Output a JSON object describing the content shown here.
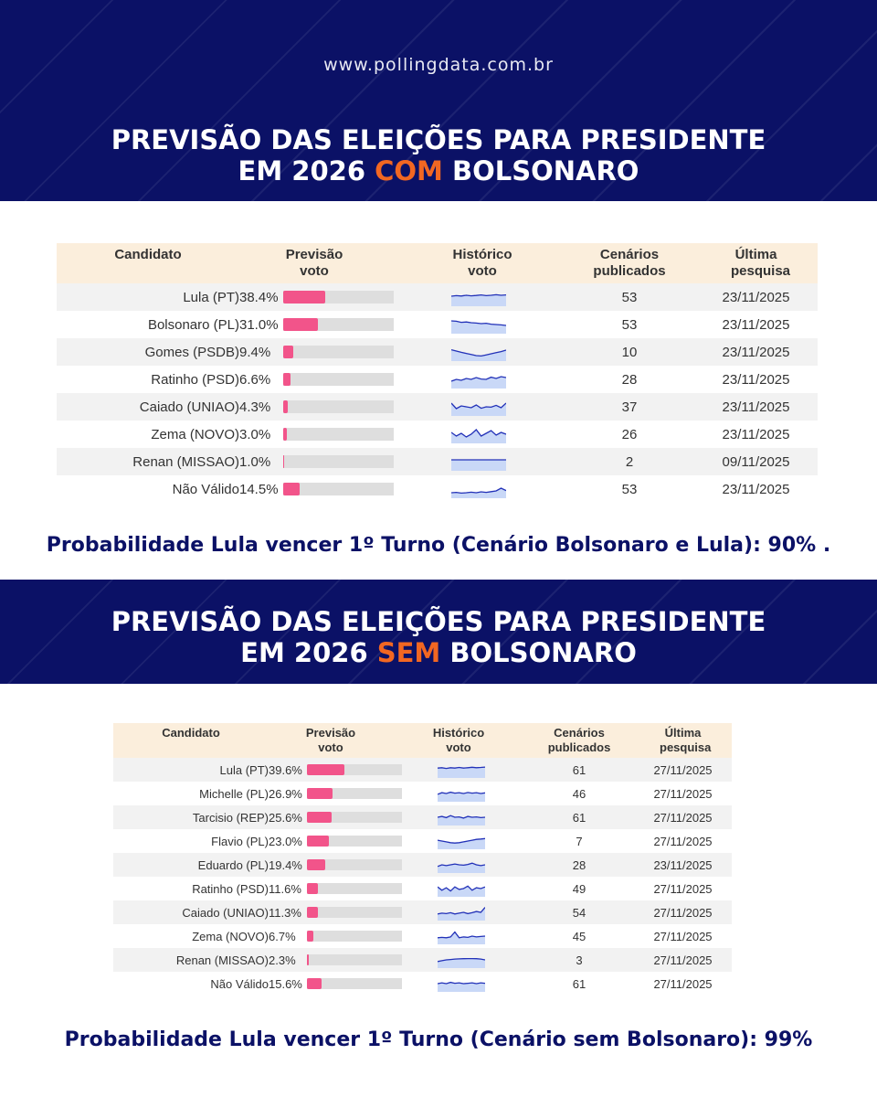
{
  "site_url": "www.pollingdata.com.br",
  "section1": {
    "title_line1": "PREVISÃO DAS ELEIÇÕES PARA PRESIDENTE",
    "title_pre": "EM 2026 ",
    "title_accent": "COM",
    "title_post": " BOLSONARO",
    "probability": "Probabilidade Lula vencer 1º Turno (Cenário Bolsonaro e Lula): 90% ."
  },
  "section2": {
    "title_line1": "PREVISÃO DAS ELEIÇÕES PARA PRESIDENTE",
    "title_pre": "EM 2026 ",
    "title_accent": "SEM",
    "title_post": " BOLSONARO",
    "probability": "Probabilidade Lula vencer 1º Turno (Cenário sem Bolsonaro): 99%"
  },
  "colors": {
    "banner": "#0b1166",
    "accent": "#f26722",
    "bar": "#f2548a",
    "header_bg": "#fbeedc",
    "spark_line": "#2231b8",
    "spark_fill": "#c9d8f7"
  },
  "chart_data": [
    {
      "type": "table",
      "columns": [
        "Candidato",
        "Previsão voto",
        "Histórico voto",
        "Cenários publicados",
        "Última pesquisa"
      ],
      "rows": [
        {
          "candidate": "Lula (PT)",
          "vote": 38.4,
          "vote_label": "38.4%",
          "scenarios": "53",
          "last_poll": "23/11/2025",
          "history": [
            0.55,
            0.58,
            0.56,
            0.6,
            0.57,
            0.59,
            0.62,
            0.58,
            0.6,
            0.63,
            0.6,
            0.62
          ]
        },
        {
          "candidate": "Bolsonaro (PL)",
          "vote": 31.0,
          "vote_label": "31.0%",
          "scenarios": "53",
          "last_poll": "23/11/2025",
          "history": [
            0.7,
            0.68,
            0.62,
            0.64,
            0.6,
            0.58,
            0.55,
            0.57,
            0.52,
            0.5,
            0.48,
            0.45
          ]
        },
        {
          "candidate": "Gomes (PSDB)",
          "vote": 9.4,
          "vote_label": "9.4%",
          "scenarios": "10",
          "last_poll": "23/11/2025",
          "history": [
            0.62,
            0.55,
            0.48,
            0.42,
            0.36,
            0.3,
            0.28,
            0.34,
            0.4,
            0.46,
            0.52,
            0.6
          ]
        },
        {
          "candidate": "Ratinho (PSD)",
          "vote": 6.6,
          "vote_label": "6.6%",
          "scenarios": "28",
          "last_poll": "23/11/2025",
          "history": [
            0.4,
            0.5,
            0.45,
            0.55,
            0.5,
            0.6,
            0.52,
            0.5,
            0.62,
            0.55,
            0.65,
            0.6
          ]
        },
        {
          "candidate": "Caiado (UNIAO)",
          "vote": 4.3,
          "vote_label": "4.3%",
          "scenarios": "37",
          "last_poll": "23/11/2025",
          "history": [
            0.7,
            0.4,
            0.55,
            0.5,
            0.45,
            0.6,
            0.42,
            0.5,
            0.48,
            0.58,
            0.45,
            0.7
          ]
        },
        {
          "candidate": "Zema (NOVO)",
          "vote": 3.0,
          "vote_label": "3.0%",
          "scenarios": "26",
          "last_poll": "23/11/2025",
          "history": [
            0.6,
            0.4,
            0.55,
            0.35,
            0.5,
            0.75,
            0.4,
            0.55,
            0.7,
            0.45,
            0.6,
            0.5
          ]
        },
        {
          "candidate": "Renan (MISSAO)",
          "vote": 1.0,
          "vote_label": "1.0%",
          "scenarios": "2",
          "last_poll": "09/11/2025",
          "history": [
            0.6,
            0.6,
            0.6,
            0.6,
            0.6,
            0.6,
            0.6,
            0.6,
            0.6,
            0.6,
            0.6,
            0.6
          ]
        },
        {
          "candidate": "Não Válido",
          "vote": 14.5,
          "vote_label": "14.5%",
          "scenarios": "53",
          "last_poll": "23/11/2025",
          "history": [
            0.3,
            0.32,
            0.28,
            0.3,
            0.33,
            0.3,
            0.35,
            0.32,
            0.36,
            0.4,
            0.55,
            0.42
          ]
        }
      ]
    },
    {
      "type": "table",
      "columns": [
        "Candidato",
        "Previsão voto",
        "Histórico voto",
        "Cenários publicados",
        "Última pesquisa"
      ],
      "rows": [
        {
          "candidate": "Lula (PT)",
          "vote": 39.6,
          "vote_label": "39.6%",
          "scenarios": "61",
          "last_poll": "27/11/2025",
          "history": [
            0.6,
            0.62,
            0.58,
            0.62,
            0.6,
            0.64,
            0.6,
            0.62,
            0.65,
            0.62,
            0.64,
            0.66
          ]
        },
        {
          "candidate": "Michelle (PL)",
          "vote": 26.9,
          "vote_label": "26.9%",
          "scenarios": "46",
          "last_poll": "27/11/2025",
          "history": [
            0.45,
            0.55,
            0.5,
            0.58,
            0.52,
            0.55,
            0.5,
            0.56,
            0.52,
            0.55,
            0.5,
            0.54
          ]
        },
        {
          "candidate": "Tarcisio (REP)",
          "vote": 25.6,
          "vote_label": "25.6%",
          "scenarios": "61",
          "last_poll": "27/11/2025",
          "history": [
            0.5,
            0.55,
            0.48,
            0.6,
            0.5,
            0.52,
            0.45,
            0.55,
            0.5,
            0.52,
            0.48,
            0.5
          ]
        },
        {
          "candidate": "Flavio (PL)",
          "vote": 23.0,
          "vote_label": "23.0%",
          "scenarios": "7",
          "last_poll": "27/11/2025",
          "history": [
            0.55,
            0.5,
            0.45,
            0.4,
            0.38,
            0.4,
            0.45,
            0.5,
            0.55,
            0.6,
            0.62,
            0.65
          ]
        },
        {
          "candidate": "Eduardo (PL)",
          "vote": 19.4,
          "vote_label": "19.4%",
          "scenarios": "28",
          "last_poll": "23/11/2025",
          "history": [
            0.4,
            0.5,
            0.45,
            0.5,
            0.55,
            0.5,
            0.48,
            0.52,
            0.6,
            0.5,
            0.45,
            0.5
          ]
        },
        {
          "candidate": "Ratinho (PSD)",
          "vote": 11.6,
          "vote_label": "11.6%",
          "scenarios": "49",
          "last_poll": "27/11/2025",
          "history": [
            0.6,
            0.4,
            0.55,
            0.35,
            0.6,
            0.45,
            0.5,
            0.65,
            0.4,
            0.55,
            0.5,
            0.6
          ]
        },
        {
          "candidate": "Caiado (UNIAO)",
          "vote": 11.3,
          "vote_label": "11.3%",
          "scenarios": "54",
          "last_poll": "27/11/2025",
          "history": [
            0.4,
            0.45,
            0.42,
            0.48,
            0.4,
            0.45,
            0.5,
            0.42,
            0.48,
            0.55,
            0.5,
            0.8
          ]
        },
        {
          "candidate": "Zema (NOVO)",
          "vote": 6.7,
          "vote_label": "6.7%",
          "scenarios": "45",
          "last_poll": "27/11/2025",
          "history": [
            0.4,
            0.42,
            0.4,
            0.45,
            0.75,
            0.4,
            0.45,
            0.42,
            0.5,
            0.45,
            0.48,
            0.5
          ]
        },
        {
          "candidate": "Renan (MISSAO)",
          "vote": 2.3,
          "vote_label": "2.3%",
          "scenarios": "3",
          "last_poll": "27/11/2025",
          "history": [
            0.4,
            0.45,
            0.5,
            0.52,
            0.55,
            0.56,
            0.57,
            0.58,
            0.58,
            0.57,
            0.55,
            0.5
          ]
        },
        {
          "candidate": "Não Válido",
          "vote": 15.6,
          "vote_label": "15.6%",
          "scenarios": "61",
          "last_poll": "27/11/2025",
          "history": [
            0.5,
            0.55,
            0.5,
            0.58,
            0.52,
            0.55,
            0.5,
            0.52,
            0.55,
            0.5,
            0.55,
            0.52
          ]
        }
      ]
    }
  ]
}
